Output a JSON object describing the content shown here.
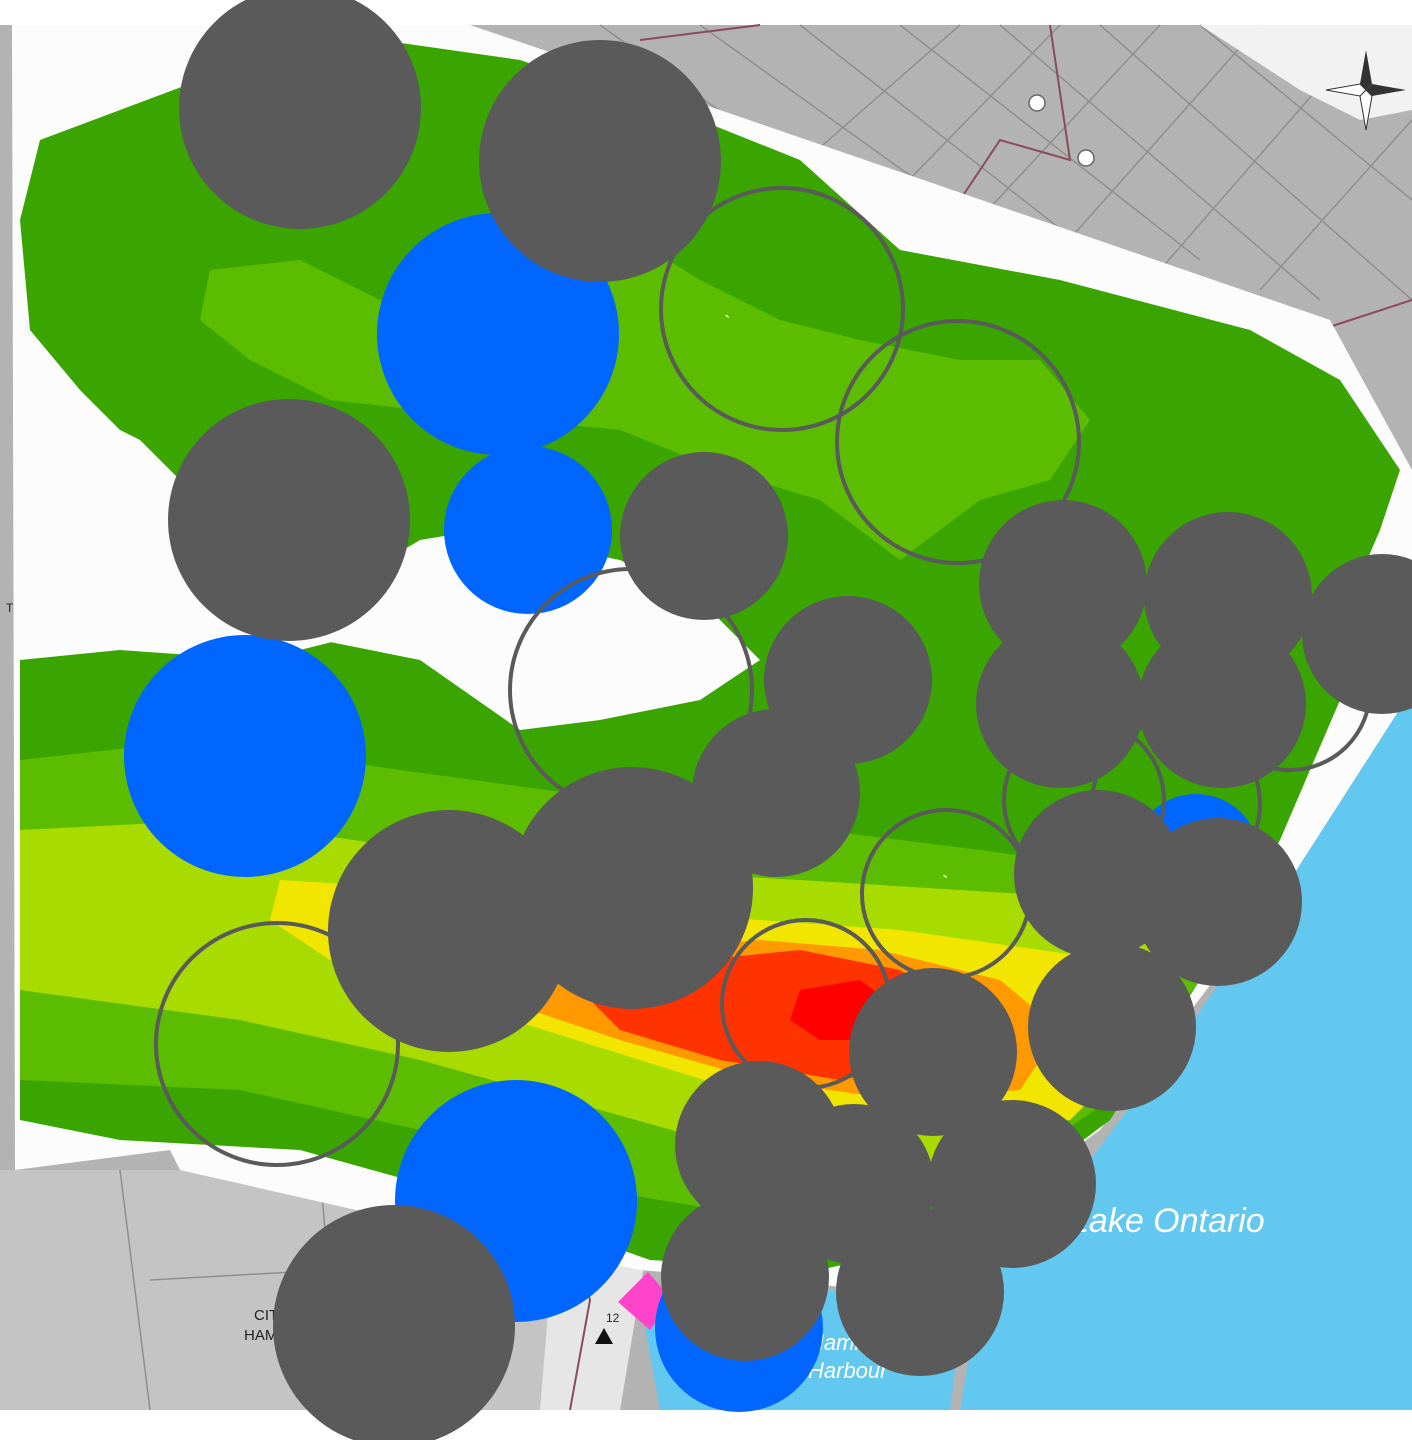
{
  "water_labels": {
    "lake": "Lake Ontario",
    "harbour_line1": "Hamilton",
    "harbour_line2": "Harbour"
  },
  "place_labels": {
    "city_line1": "CITY OF",
    "city_line2": "HAMILTON",
    "marker_number": "12",
    "left_edge_letter": "T"
  },
  "stray_marks": [
    "`",
    "`",
    "`"
  ],
  "colors": {
    "basemap_gray": "#b3b3b3",
    "lake_blue": "#63c8f0",
    "zone_dark_green": "#3aa500",
    "zone_light_green": "#5cbd00",
    "zone_yellow_green": "#a8dc00",
    "zone_yellow": "#f2e600",
    "zone_orange": "#ff9900",
    "zone_red": "#ff3300",
    "zone_core_red": "#ff0000",
    "marker_blue": "#0066ff",
    "marker_gray": "#5a5a5a",
    "road_line": "#8a4b5b",
    "boundary_line": "#666666"
  },
  "icons": [
    "north-arrow-icon",
    "highway-shield-icon",
    "triangle-marker-icon"
  ]
}
